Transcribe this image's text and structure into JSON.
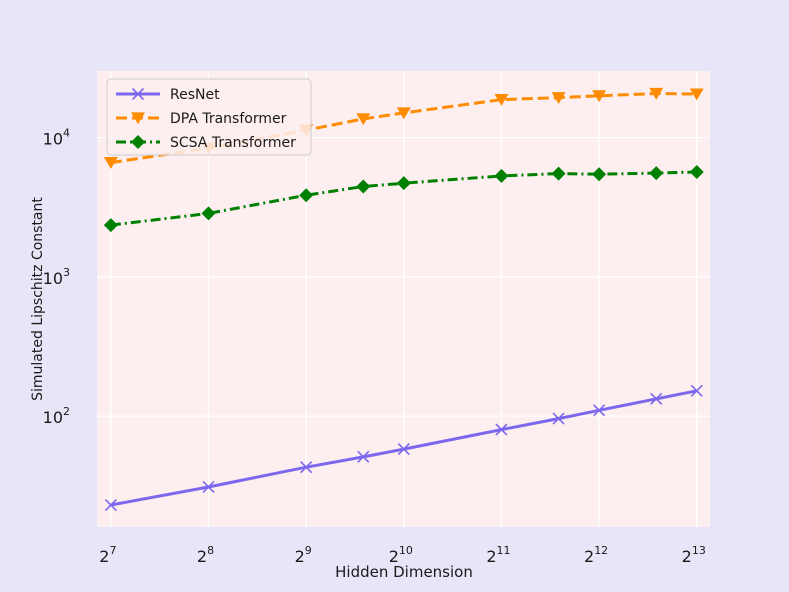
{
  "chart_data": {
    "type": "line",
    "title": "",
    "xlabel": "Hidden Dimension",
    "ylabel": "Simulated Lipschitz Constant",
    "x_scale": "log2",
    "y_scale": "log10",
    "xlim": [
      116,
      9000
    ],
    "ylim": [
      16,
      30000
    ],
    "x_ticks": [
      {
        "value": 128,
        "base": "2",
        "exp": "7"
      },
      {
        "value": 256,
        "base": "2",
        "exp": "8"
      },
      {
        "value": 512,
        "base": "2",
        "exp": "9"
      },
      {
        "value": 1024,
        "base": "2",
        "exp": "10"
      },
      {
        "value": 2048,
        "base": "2",
        "exp": "11"
      },
      {
        "value": 4096,
        "base": "2",
        "exp": "12"
      },
      {
        "value": 8192,
        "base": "2",
        "exp": "13"
      }
    ],
    "y_ticks": [
      {
        "value": 100,
        "base": "10",
        "exp": "2"
      },
      {
        "value": 1000,
        "base": "10",
        "exp": "3"
      },
      {
        "value": 10000,
        "base": "10",
        "exp": "4"
      }
    ],
    "grid": true,
    "legend_position": "top-left",
    "plot_background": "#fdeef0",
    "series": [
      {
        "name": "ResNet",
        "color": "#7b68ee",
        "marker": "x",
        "linestyle": "solid",
        "x": [
          128,
          256,
          512,
          768,
          1024,
          2048,
          3072,
          4096,
          6144,
          8192
        ],
        "y": [
          23,
          31,
          43,
          51,
          58,
          80,
          96,
          110,
          133,
          152
        ]
      },
      {
        "name": "DPA Transformer",
        "color": "#ff8c00",
        "marker": "triangle-down",
        "linestyle": "dashed",
        "x": [
          128,
          256,
          512,
          768,
          1024,
          2048,
          3072,
          4096,
          6144,
          8192
        ],
        "y": [
          6600,
          8400,
          11300,
          13600,
          15000,
          18700,
          19300,
          19900,
          20700,
          20500
        ]
      },
      {
        "name": "SCSA Transformer",
        "color": "#008000",
        "marker": "diamond",
        "linestyle": "dashdot",
        "x": [
          128,
          256,
          512,
          768,
          1024,
          2048,
          3072,
          4096,
          6144,
          8192
        ],
        "y": [
          2350,
          2850,
          3850,
          4450,
          4700,
          5300,
          5500,
          5450,
          5550,
          5650
        ]
      }
    ]
  }
}
